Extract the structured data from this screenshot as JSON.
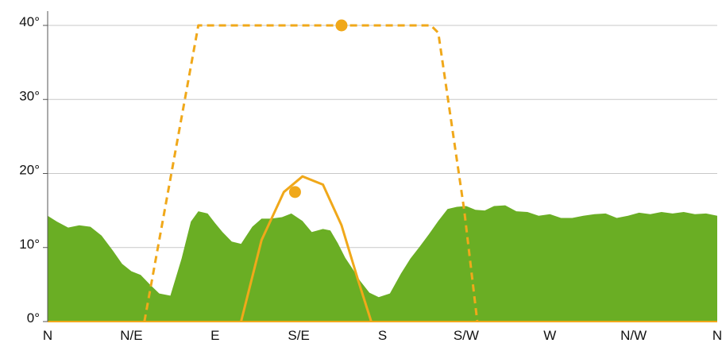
{
  "chart_data": {
    "type": "area",
    "title": "",
    "xlabel": "",
    "ylabel": "",
    "x_ticks": [
      "N",
      "N/E",
      "E",
      "S/E",
      "S",
      "S/W",
      "W",
      "N/W",
      "N"
    ],
    "y_ticks": [
      "0°",
      "10°",
      "20°",
      "30°",
      "40°"
    ],
    "xlim": [
      0,
      360
    ],
    "ylim": [
      0,
      40
    ],
    "grid": true,
    "colors": {
      "terrain": "#6aae24",
      "sun": "#f0a81a",
      "grid": "#c8c8c8",
      "axis": "#555555"
    },
    "series": [
      {
        "kind": "area",
        "x": [
          0,
          5,
          11,
          17,
          23,
          29,
          35,
          40,
          45,
          50,
          55,
          60,
          66,
          72,
          77,
          81,
          86,
          90,
          94,
          99,
          104,
          110,
          115,
          120,
          126,
          131,
          137,
          142,
          148,
          152,
          156,
          160,
          164,
          168,
          173,
          178,
          184,
          190,
          195,
          200,
          205,
          210,
          215,
          220,
          225,
          230,
          235,
          240,
          246,
          252,
          258,
          264,
          270,
          276,
          282,
          288,
          294,
          300,
          306,
          312,
          318,
          324,
          330,
          336,
          342,
          348,
          354,
          360
        ],
        "values": [
          14.3,
          13.5,
          12.7,
          13.0,
          12.8,
          11.6,
          9.6,
          7.8,
          6.8,
          6.3,
          5.0,
          3.8,
          3.5,
          8.5,
          13.5,
          14.9,
          14.6,
          13.3,
          12.1,
          10.8,
          10.5,
          12.8,
          13.9,
          13.9,
          14.1,
          14.6,
          13.6,
          12.1,
          12.5,
          12.3,
          10.6,
          8.6,
          7.1,
          5.5,
          3.9,
          3.3,
          3.8,
          6.5,
          8.5,
          10.1,
          11.8,
          13.6,
          15.2,
          15.5,
          15.6,
          15.1,
          15.0,
          15.6,
          15.7,
          14.9,
          14.8,
          14.3,
          14.5,
          14.0,
          14.0,
          14.3,
          14.5,
          14.6,
          14.0,
          14.3,
          14.7,
          14.5,
          14.8,
          14.6,
          14.8,
          14.5,
          14.6,
          14.3
        ]
      },
      {
        "kind": "line",
        "dashed": true,
        "x": [
          52,
          81,
          206,
          210,
          224,
          231
        ],
        "values": [
          0,
          40,
          40,
          39,
          15,
          0
        ]
      },
      {
        "kind": "line",
        "dashed": false,
        "x": [
          104,
          115,
          127,
          137,
          148,
          158,
          167,
          174
        ],
        "values": [
          0,
          11,
          17.5,
          19.6,
          18.5,
          13,
          5.5,
          0
        ]
      },
      {
        "kind": "markers",
        "x": [
          133,
          158
        ],
        "values": [
          17.5,
          40
        ]
      }
    ]
  }
}
